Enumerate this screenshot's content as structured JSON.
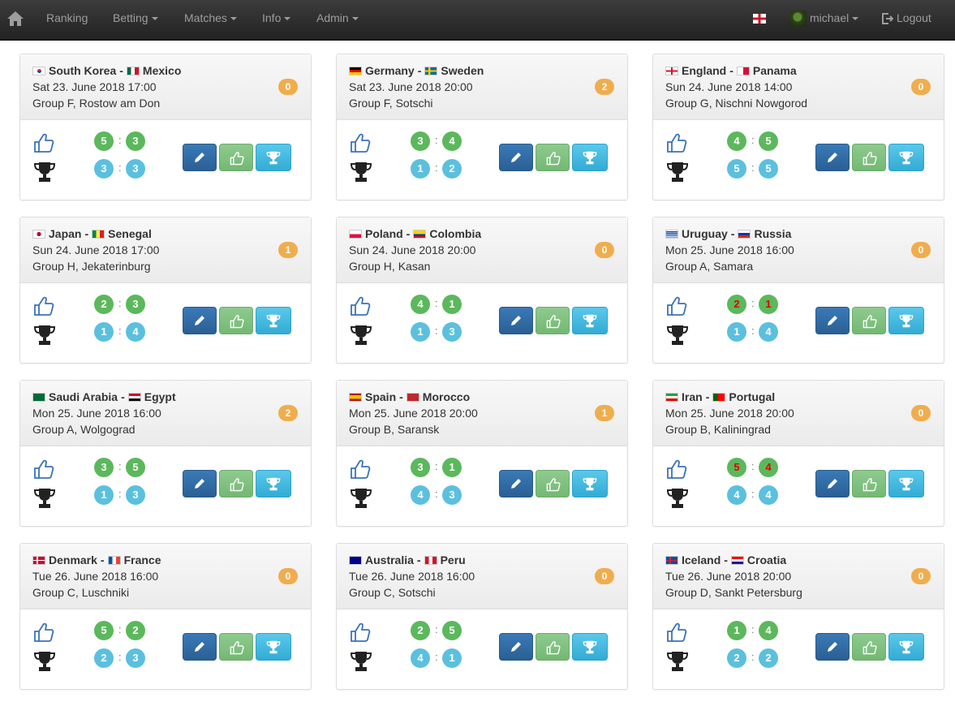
{
  "nav": {
    "items": [
      "Ranking",
      "Betting",
      "Matches",
      "Info",
      "Admin"
    ],
    "user": "michael",
    "logout": "Logout"
  },
  "colors": {
    "accent_orange": "#f0ad4e",
    "tip_green": "#5cb85c",
    "result_blue": "#5bc0de",
    "edit_blue": "#2e6da4"
  },
  "matches": [
    {
      "team1": "South Korea",
      "team2": "Mexico",
      "flag1": "kr",
      "flag2": "mx",
      "date": "Sat 23. June 2018 17:00",
      "group": "Group F, Rostow am Don",
      "points": "0",
      "tip": [
        "5",
        "3"
      ],
      "result": [
        "3",
        "3"
      ],
      "tip_wrong": false
    },
    {
      "team1": "Germany",
      "team2": "Sweden",
      "flag1": "de",
      "flag2": "se",
      "date": "Sat 23. June 2018 20:00",
      "group": "Group F, Sotschi",
      "points": "2",
      "tip": [
        "3",
        "4"
      ],
      "result": [
        "1",
        "2"
      ],
      "tip_wrong": false
    },
    {
      "team1": "England",
      "team2": "Panama",
      "flag1": "en",
      "flag2": "pa",
      "date": "Sun 24. June 2018 14:00",
      "group": "Group G, Nischni Nowgorod",
      "points": "0",
      "tip": [
        "4",
        "5"
      ],
      "result": [
        "5",
        "5"
      ],
      "tip_wrong": false
    },
    {
      "team1": "Japan",
      "team2": "Senegal",
      "flag1": "jp",
      "flag2": "sn",
      "date": "Sun 24. June 2018 17:00",
      "group": "Group H, Jekaterinburg",
      "points": "1",
      "tip": [
        "2",
        "3"
      ],
      "result": [
        "1",
        "4"
      ],
      "tip_wrong": false
    },
    {
      "team1": "Poland",
      "team2": "Colombia",
      "flag1": "pl",
      "flag2": "co",
      "date": "Sun 24. June 2018 20:00",
      "group": "Group H, Kasan",
      "points": "0",
      "tip": [
        "4",
        "1"
      ],
      "result": [
        "1",
        "3"
      ],
      "tip_wrong": false
    },
    {
      "team1": "Uruguay",
      "team2": "Russia",
      "flag1": "uy",
      "flag2": "ru",
      "date": "Mon 25. June 2018 16:00",
      "group": "Group A, Samara",
      "points": "0",
      "tip": [
        "2",
        "1"
      ],
      "result": [
        "1",
        "4"
      ],
      "tip_wrong": true
    },
    {
      "team1": "Saudi Arabia",
      "team2": "Egypt",
      "flag1": "sa",
      "flag2": "eg",
      "date": "Mon 25. June 2018 16:00",
      "group": "Group A, Wolgograd",
      "points": "2",
      "tip": [
        "3",
        "5"
      ],
      "result": [
        "1",
        "3"
      ],
      "tip_wrong": false
    },
    {
      "team1": "Spain",
      "team2": "Morocco",
      "flag1": "es",
      "flag2": "ma",
      "date": "Mon 25. June 2018 20:00",
      "group": "Group B, Saransk",
      "points": "1",
      "tip": [
        "3",
        "1"
      ],
      "result": [
        "4",
        "3"
      ],
      "tip_wrong": false
    },
    {
      "team1": "Iran",
      "team2": "Portugal",
      "flag1": "ir",
      "flag2": "pt",
      "date": "Mon 25. June 2018 20:00",
      "group": "Group B, Kaliningrad",
      "points": "0",
      "tip": [
        "5",
        "4"
      ],
      "result": [
        "4",
        "4"
      ],
      "tip_wrong": true
    },
    {
      "team1": "Denmark",
      "team2": "France",
      "flag1": "dk",
      "flag2": "fr",
      "date": "Tue 26. June 2018 16:00",
      "group": "Group C, Luschniki",
      "points": "0",
      "tip": [
        "5",
        "2"
      ],
      "result": [
        "2",
        "3"
      ],
      "tip_wrong": false
    },
    {
      "team1": "Australia",
      "team2": "Peru",
      "flag1": "au",
      "flag2": "pe",
      "date": "Tue 26. June 2018 16:00",
      "group": "Group C, Sotschi",
      "points": "0",
      "tip": [
        "2",
        "5"
      ],
      "result": [
        "4",
        "1"
      ],
      "tip_wrong": false
    },
    {
      "team1": "Iceland",
      "team2": "Croatia",
      "flag1": "is",
      "flag2": "hr",
      "date": "Tue 26. June 2018 20:00",
      "group": "Group D, Sankt Petersburg",
      "points": "0",
      "tip": [
        "1",
        "4"
      ],
      "result": [
        "2",
        "2"
      ],
      "tip_wrong": false
    }
  ]
}
